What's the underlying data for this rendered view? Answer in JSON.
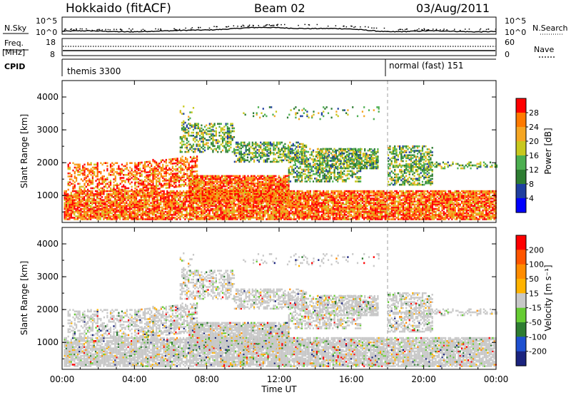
{
  "header": {
    "station": "Hokkaido (fitACF)",
    "beam": "Beam 02",
    "date": "03/Aug/2011"
  },
  "noise_panel": {
    "left_label": "N.Sky",
    "right_label": "N.Search",
    "left_ticks": [
      "10^5",
      "10^0"
    ],
    "right_ticks": [
      "10^5",
      "10^0"
    ]
  },
  "freq_panel": {
    "left_label_line1": "Freq.",
    "left_label_line2": "[MHz]",
    "right_label": "Nave",
    "left_ticks": [
      "18",
      "8"
    ],
    "right_ticks": [
      "60",
      "0"
    ]
  },
  "cpid_panel": {
    "label": "CPID",
    "segments": [
      {
        "start_hour": 0,
        "text": "themis 3300"
      },
      {
        "start_hour": 18,
        "text": "normal (fast) 151"
      }
    ]
  },
  "chart_data": [
    {
      "type": "heatmap",
      "name": "power",
      "ylabel": "Slant Range [km]",
      "yticks": [
        "1000",
        "2000",
        "3000",
        "4000"
      ],
      "ylim": [
        180,
        4500
      ],
      "xlim": [
        0,
        24
      ],
      "colorbar": {
        "label": "Power [dB]",
        "ticks": [
          "4",
          "8",
          "12",
          "16",
          "20",
          "24",
          "28"
        ],
        "colors": [
          "#0000ff",
          "#1f3fa0",
          "#2e7d32",
          "#4caf50",
          "#c8c81e",
          "#f5a623",
          "#ff7a00",
          "#ff0000"
        ]
      }
    },
    {
      "type": "heatmap",
      "name": "velocity",
      "ylabel": "Slant Range [km]",
      "yticks": [
        "1000",
        "2000",
        "3000",
        "4000"
      ],
      "ylim": [
        180,
        4500
      ],
      "xlim": [
        0,
        24
      ],
      "xlabel": "Time UT",
      "xticks": [
        "00:00",
        "04:00",
        "08:00",
        "12:00",
        "16:00",
        "20:00",
        "00:00"
      ],
      "colorbar": {
        "label": "Velocity [m s⁻¹]",
        "ticks": [
          "200",
          "100",
          "50",
          "15",
          "-15",
          "-50",
          "-100",
          "-200"
        ],
        "colors": [
          "#1a237e",
          "#1e50d0",
          "#2e7d32",
          "#66cc33",
          "#c8c8c8",
          "#ffb300",
          "#ff8c00",
          "#ff5500",
          "#ff0000"
        ]
      }
    }
  ]
}
